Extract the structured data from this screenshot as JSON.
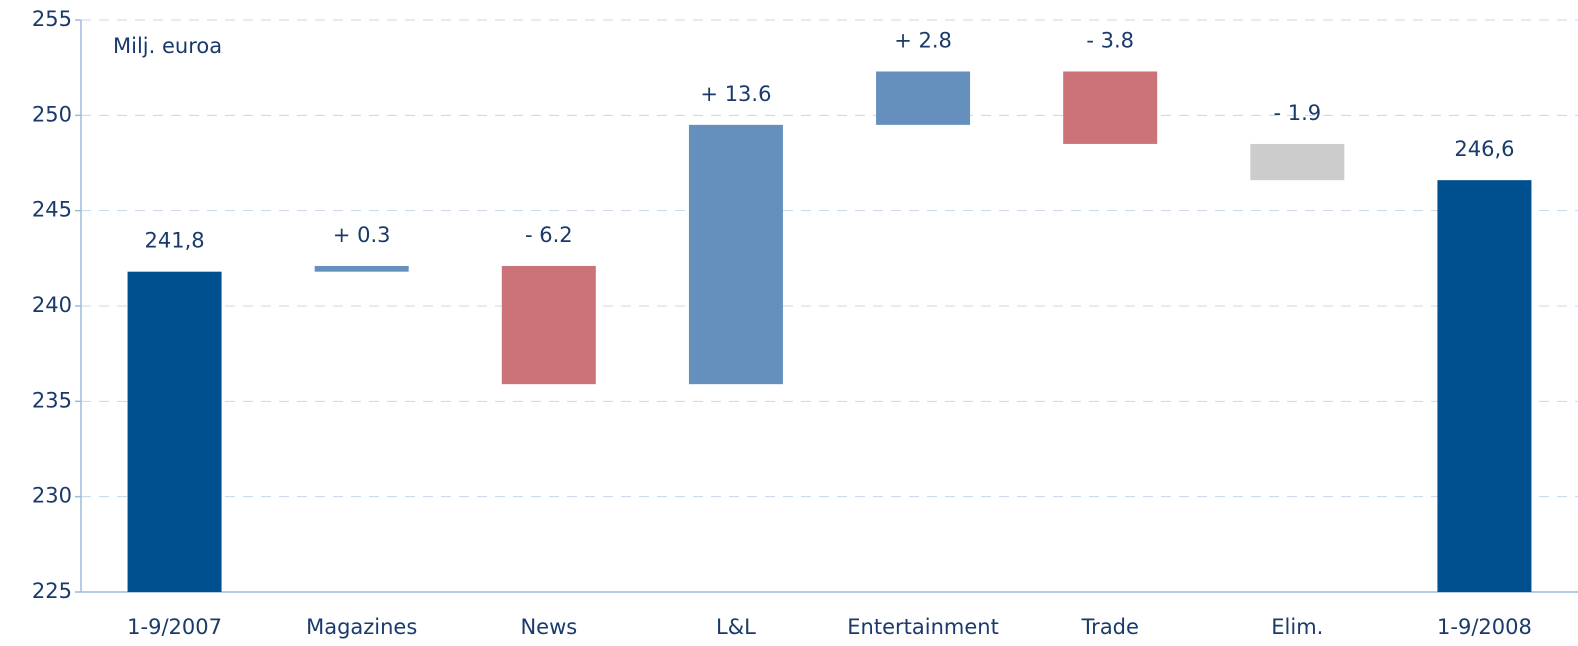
{
  "chart_data": {
    "type": "waterfall",
    "annotation": "Milj. euroa",
    "categories": [
      "1-9/2007",
      "Magazines",
      "News",
      "L&L",
      "Entertainment",
      "Trade",
      "Elim.",
      "1-9/2008"
    ],
    "values": [
      241.8,
      0.3,
      -6.2,
      13.6,
      2.8,
      -3.8,
      -1.9,
      246.6
    ],
    "value_labels": [
      "241,8",
      "+ 0.3",
      "- 6.2",
      "+ 13.6",
      "+ 2.8",
      "- 3.8",
      "- 1.9",
      "246,6"
    ],
    "total_bars": [
      true,
      false,
      false,
      false,
      false,
      false,
      false,
      true
    ],
    "colors": [
      "#00508f",
      "#6590bd",
      "#cc737a",
      "#6590bd",
      "#6590bd",
      "#cc737a",
      "#cccccc",
      "#00508f"
    ],
    "ylim": [
      225,
      255
    ],
    "yticks": [
      225,
      230,
      235,
      240,
      245,
      250,
      255
    ],
    "grid": true
  }
}
